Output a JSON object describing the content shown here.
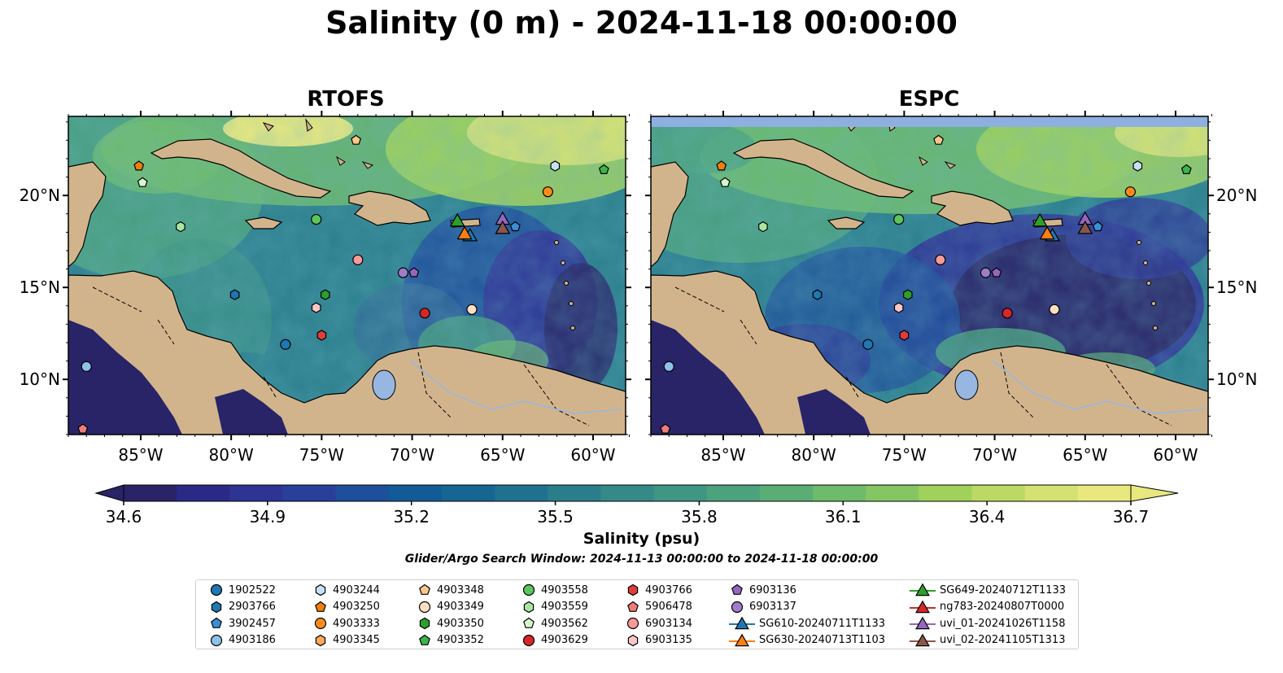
{
  "title": "Salinity (0 m) - 2024-11-18 00:00:00",
  "panels": [
    {
      "id": "rtofs",
      "title": "RTOFS"
    },
    {
      "id": "espc",
      "title": "ESPC"
    }
  ],
  "axes": {
    "lon_ticks": [
      {
        "value": -85,
        "label": "85°W"
      },
      {
        "value": -80,
        "label": "80°W"
      },
      {
        "value": -75,
        "label": "75°W"
      },
      {
        "value": -70,
        "label": "70°W"
      },
      {
        "value": -65,
        "label": "65°W"
      },
      {
        "value": -60,
        "label": "60°W"
      }
    ],
    "lat_ticks": [
      {
        "value": 20,
        "label": "20°N"
      },
      {
        "value": 15,
        "label": "15°N"
      },
      {
        "value": 10,
        "label": "10°N"
      }
    ],
    "lon_range": [
      -89,
      -58.2
    ],
    "lat_range": [
      7,
      24.3
    ]
  },
  "colorbar": {
    "label": "Salinity (psu)",
    "min": 34.6,
    "max": 36.7,
    "extend": "both",
    "ticks": [
      "34.6",
      "34.9",
      "35.2",
      "35.5",
      "35.8",
      "36.1",
      "36.4",
      "36.7"
    ],
    "colors": [
      "#282467",
      "#2a2a86",
      "#2d3494",
      "#29409a",
      "#1e4f9a",
      "#135b97",
      "#156792",
      "#1f728f",
      "#2a7e8c",
      "#358a88",
      "#3f9683",
      "#4ba27d",
      "#5aad74",
      "#6ebb6b",
      "#86c563",
      "#a0d15c",
      "#bcd964",
      "#d5e272",
      "#e8e87e"
    ]
  },
  "colors": {
    "land": "#d2b48c",
    "lake": "#97b6e1",
    "deep": "#282467",
    "mid": "#2a7e8c",
    "fresh_green": "#6ebb6b",
    "high": "#e8e87e",
    "espc_mask": "#8eb0e0"
  },
  "search_window": "Glider/Argo Search Window: 2024-11-13 00:00:00 to 2024-11-18 00:00:00",
  "legend": [
    {
      "label": "1902522",
      "marker": "circle",
      "color": "#1f77b4"
    },
    {
      "label": "2903766",
      "marker": "hexagon",
      "color": "#1f77b4"
    },
    {
      "label": "3902457",
      "marker": "pentagon",
      "color": "#3b8fd6"
    },
    {
      "label": "4903186",
      "marker": "circle",
      "color": "#8ec1e8"
    },
    {
      "label": "4903244",
      "marker": "hexagon",
      "color": "#c6e1f5"
    },
    {
      "label": "4903250",
      "marker": "pentagon",
      "color": "#f07f0e"
    },
    {
      "label": "4903333",
      "marker": "circle",
      "color": "#ff8c1a"
    },
    {
      "label": "4903345",
      "marker": "hexagon",
      "color": "#ffa85c"
    },
    {
      "label": "4903348",
      "marker": "pentagon",
      "color": "#ffc88a"
    },
    {
      "label": "4903349",
      "marker": "circle",
      "color": "#fde0c4"
    },
    {
      "label": "4903350",
      "marker": "hexagon",
      "color": "#2ca02c"
    },
    {
      "label": "4903352",
      "marker": "pentagon",
      "color": "#3cb44b"
    },
    {
      "label": "4903558",
      "marker": "circle",
      "color": "#5cc55c"
    },
    {
      "label": "4903559",
      "marker": "hexagon",
      "color": "#a8e6a0"
    },
    {
      "label": "4903562",
      "marker": "pentagon",
      "color": "#d6f5cf"
    },
    {
      "label": "4903629",
      "marker": "circle",
      "color": "#d62728"
    },
    {
      "label": "4903766",
      "marker": "hexagon",
      "color": "#e03c3c"
    },
    {
      "label": "5906478",
      "marker": "pentagon",
      "color": "#f07b7b"
    },
    {
      "label": "6903134",
      "marker": "circle",
      "color": "#f79a9a"
    },
    {
      "label": "6903135",
      "marker": "hexagon",
      "color": "#fcc6c6"
    },
    {
      "label": "6903136",
      "marker": "pentagon",
      "color": "#9467bd"
    },
    {
      "label": "6903137",
      "marker": "circle",
      "color": "#a07cc9"
    },
    {
      "label": "SG610-20240711T1133",
      "marker": "triangle-line",
      "color": "#1f77b4"
    },
    {
      "label": "SG630-20240713T1103",
      "marker": "triangle-line",
      "color": "#ff7f0e"
    },
    {
      "label": "SG649-20240712T1133",
      "marker": "triangle-line",
      "color": "#2ca02c"
    },
    {
      "label": "ng783-20240807T0000",
      "marker": "triangle-line",
      "color": "#d62728"
    },
    {
      "label": "uvi_01-20241026T1158",
      "marker": "triangle-line",
      "color": "#9467bd"
    },
    {
      "label": "uvi_02-20241105T1313",
      "marker": "triangle-line",
      "color": "#8c564b"
    }
  ],
  "observations": [
    {
      "id": "1902522",
      "lon": -77.0,
      "lat": 11.9
    },
    {
      "id": "2903766",
      "lon": -79.8,
      "lat": 14.6
    },
    {
      "id": "3902457",
      "lon": -64.3,
      "lat": 18.3
    },
    {
      "id": "4903186",
      "lon": -88.0,
      "lat": 10.7
    },
    {
      "id": "4903244",
      "lon": -62.1,
      "lat": 21.6
    },
    {
      "id": "4903250",
      "lon": -85.1,
      "lat": 21.6
    },
    {
      "id": "4903333",
      "lon": -62.5,
      "lat": 20.2
    },
    {
      "id": "4903349",
      "lon": -66.7,
      "lat": 13.8
    },
    {
      "id": "4903348",
      "lon": -73.1,
      "lat": 23.0
    },
    {
      "id": "4903350",
      "lon": -74.8,
      "lat": 14.6
    },
    {
      "id": "4903352",
      "lon": -59.4,
      "lat": 21.4
    },
    {
      "id": "4903558",
      "lon": -75.3,
      "lat": 18.7
    },
    {
      "id": "4903562",
      "lon": -84.9,
      "lat": 20.7
    },
    {
      "id": "4903559",
      "lon": -82.8,
      "lat": 18.3
    },
    {
      "id": "4903629",
      "lon": -69.3,
      "lat": 13.6
    },
    {
      "id": "4903766",
      "lon": -75.0,
      "lat": 12.4
    },
    {
      "id": "5906478",
      "lon": -88.2,
      "lat": 7.3
    },
    {
      "id": "6903134",
      "lon": -73.0,
      "lat": 16.5
    },
    {
      "id": "6903135",
      "lon": -75.3,
      "lat": 13.9
    },
    {
      "id": "6903136",
      "lon": -69.9,
      "lat": 15.8
    },
    {
      "id": "6903137",
      "lon": -70.5,
      "lat": 15.8
    },
    {
      "id": "SG649-20240712T1133",
      "lon": -67.5,
      "lat": 18.6
    },
    {
      "id": "SG610-20240711T1133",
      "lon": -66.8,
      "lat": 17.8
    },
    {
      "id": "SG630-20240713T1103",
      "lon": -67.1,
      "lat": 17.9
    },
    {
      "id": "uvi_01-20241026T1158",
      "lon": -65.0,
      "lat": 18.7
    },
    {
      "id": "uvi_02-20241105T1313",
      "lon": -65.0,
      "lat": 18.2
    }
  ]
}
